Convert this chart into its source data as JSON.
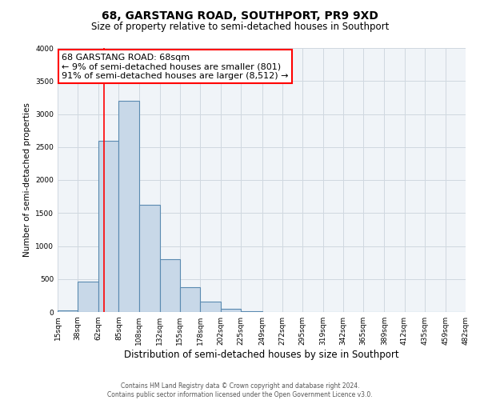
{
  "title": "68, GARSTANG ROAD, SOUTHPORT, PR9 9XD",
  "subtitle": "Size of property relative to semi-detached houses in Southport",
  "xlabel": "Distribution of semi-detached houses by size in Southport",
  "ylabel": "Number of semi-detached properties",
  "footer_line1": "Contains HM Land Registry data © Crown copyright and database right 2024.",
  "footer_line2": "Contains public sector information licensed under the Open Government Licence v3.0.",
  "bar_edges": [
    15,
    38,
    62,
    85,
    108,
    132,
    155,
    178,
    202,
    225,
    249,
    272,
    295,
    319,
    342,
    365,
    389,
    412,
    435,
    459,
    482
  ],
  "bar_heights": [
    30,
    460,
    2600,
    3200,
    1630,
    800,
    380,
    155,
    50,
    15,
    5,
    2,
    1,
    0,
    0,
    0,
    0,
    0,
    0,
    0
  ],
  "bar_color": "#c8d8e8",
  "bar_edge_color": "#5a8ab0",
  "bar_linewidth": 0.8,
  "annotation_line1": "68 GARSTANG ROAD: 68sqm",
  "annotation_line2": "← 9% of semi-detached houses are smaller (801)",
  "annotation_line3": "91% of semi-detached houses are larger (8,512) →",
  "annotation_box_color": "#ffffff",
  "annotation_box_edge_color": "red",
  "red_line_x": 68,
  "ylim": [
    0,
    4000
  ],
  "yticks": [
    0,
    500,
    1000,
    1500,
    2000,
    2500,
    3000,
    3500,
    4000
  ],
  "xtick_labels": [
    "15sqm",
    "38sqm",
    "62sqm",
    "85sqm",
    "108sqm",
    "132sqm",
    "155sqm",
    "178sqm",
    "202sqm",
    "225sqm",
    "249sqm",
    "272sqm",
    "295sqm",
    "319sqm",
    "342sqm",
    "365sqm",
    "389sqm",
    "412sqm",
    "435sqm",
    "459sqm",
    "482sqm"
  ],
  "grid_color": "#d0d8e0",
  "bg_color": "#f0f4f8",
  "title_fontsize": 10,
  "subtitle_fontsize": 8.5,
  "xlabel_fontsize": 8.5,
  "ylabel_fontsize": 7.5,
  "tick_fontsize": 6.5,
  "annotation_fontsize": 8
}
